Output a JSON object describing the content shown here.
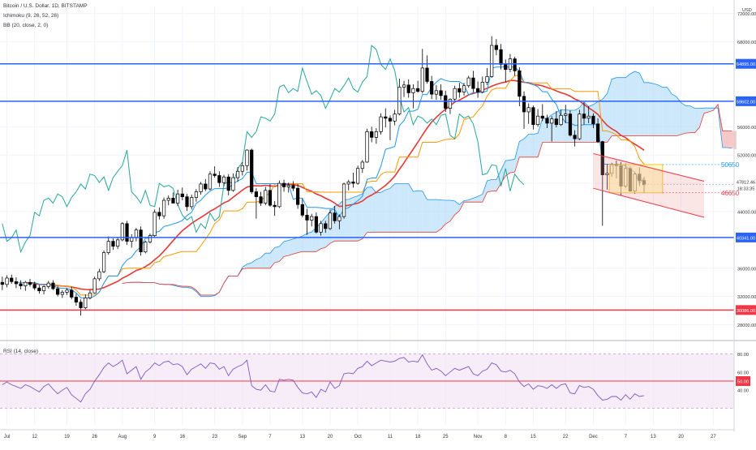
{
  "header": {
    "symbol_line": "Bitcoin / U.S. Dollar, 1D, BITSTAMP",
    "indicator_1": "Ichimoku (9, 26, 52, 26)",
    "indicator_2": "BB (20, close, 2, 0)",
    "currency": "USD"
  },
  "rsi": {
    "title": "RSI (14, close)",
    "levels": [
      80,
      60,
      50,
      40,
      20
    ],
    "level_label": "50.00",
    "ticks": [
      "80.00",
      "60.00",
      "40.00"
    ]
  },
  "chart_data": {
    "type": "candlestick",
    "price_axis_ticks": [
      {
        "value": 72000,
        "label": "72000.00"
      },
      {
        "value": 68000,
        "label": "68000.00"
      },
      {
        "value": 56000,
        "label": "56000.00"
      },
      {
        "value": 52000,
        "label": "52000.00"
      },
      {
        "value": 48000,
        "label": "48000.00"
      },
      {
        "value": 44000,
        "label": "44000.00"
      },
      {
        "value": 40000,
        "label": "40000.00"
      },
      {
        "value": 36000,
        "label": "36000.00"
      },
      {
        "value": 32000,
        "label": "32000.00"
      },
      {
        "value": 28000,
        "label": "28000.00"
      }
    ],
    "price_range": [
      26000,
      73000
    ],
    "x_ticks": [
      "Jul",
      "12",
      "19",
      "26",
      "Aug",
      "9",
      "16",
      "23",
      "Sep",
      "7",
      "13",
      "20",
      "Oct",
      "11",
      "18",
      "25",
      "Nov",
      "8",
      "15",
      "22",
      "Dec",
      "7",
      "13",
      "20",
      "27"
    ],
    "horizontal_levels": [
      {
        "value": 64895,
        "label": "64895.00",
        "color": "#2962ff"
      },
      {
        "value": 59602,
        "label": "59602.00",
        "color": "#2962ff"
      },
      {
        "value": 40341,
        "label": "40341.00",
        "color": "#2962ff"
      },
      {
        "value": 30086,
        "label": "30086.00",
        "color": "#f23645"
      }
    ],
    "current_price": {
      "value": 47812.46,
      "label": "47812.46",
      "countdown": "18:33:35"
    },
    "annotations": [
      {
        "text": "50650",
        "color": "#2196f3"
      },
      {
        "text": "46650",
        "color": "#f23645"
      }
    ],
    "colors": {
      "up": "#ffffff",
      "down": "#000000",
      "tenkan": "#2196f3",
      "kijun": "#ff9800",
      "chikou": "#26a69a",
      "kumo_bull": "#a5d6f7",
      "kumo_bear": "#ef9a9a",
      "bb_basis": "#e53935",
      "rsi_line": "#7e57c2",
      "rsi_band": "#f3e5f5"
    },
    "candles": [
      [
        34000,
        34800,
        32900,
        33700
      ],
      [
        33700,
        35000,
        33300,
        34600
      ],
      [
        34600,
        35100,
        33800,
        34100
      ],
      [
        34100,
        34700,
        33200,
        33800
      ],
      [
        33800,
        34300,
        33000,
        33500
      ],
      [
        33500,
        34200,
        32800,
        34000
      ],
      [
        34000,
        34500,
        33400,
        33700
      ],
      [
        33700,
        34100,
        32900,
        33200
      ],
      [
        33200,
        33600,
        32400,
        32800
      ],
      [
        32800,
        33600,
        32300,
        33400
      ],
      [
        33400,
        34200,
        33100,
        33900
      ],
      [
        33900,
        34300,
        32900,
        33100
      ],
      [
        33100,
        33500,
        32000,
        32300
      ],
      [
        32300,
        32900,
        31800,
        32600
      ],
      [
        32600,
        33200,
        32200,
        32900
      ],
      [
        32900,
        33400,
        31600,
        31900
      ],
      [
        31900,
        32400,
        30700,
        31200
      ],
      [
        31200,
        31600,
        29300,
        30400
      ],
      [
        30400,
        32300,
        30200,
        31800
      ],
      [
        31800,
        32900,
        31600,
        32500
      ],
      [
        32500,
        34800,
        32400,
        34500
      ],
      [
        34500,
        35900,
        34200,
        35500
      ],
      [
        35500,
        38500,
        35300,
        38200
      ],
      [
        38200,
        40500,
        37900,
        39800
      ],
      [
        39800,
        40200,
        38600,
        39100
      ],
      [
        39100,
        40300,
        38700,
        40000
      ],
      [
        40000,
        42500,
        39800,
        42300
      ],
      [
        42300,
        42700,
        39300,
        39800
      ],
      [
        39800,
        40800,
        38900,
        40300
      ],
      [
        40300,
        41700,
        39800,
        41400
      ],
      [
        41400,
        41900,
        37800,
        38300
      ],
      [
        38300,
        39900,
        38100,
        39700
      ],
      [
        39700,
        40900,
        39500,
        40600
      ],
      [
        40600,
        44300,
        40400,
        43900
      ],
      [
        43900,
        44600,
        42900,
        43400
      ],
      [
        43400,
        46000,
        43000,
        45600
      ],
      [
        45600,
        46300,
        44900,
        45900
      ],
      [
        45900,
        46700,
        45300,
        45200
      ],
      [
        45200,
        47100,
        44800,
        46500
      ],
      [
        46500,
        47400,
        45600,
        46100
      ],
      [
        46100,
        46500,
        44100,
        44700
      ],
      [
        44700,
        46400,
        44300,
        46000
      ],
      [
        46000,
        47200,
        45400,
        46800
      ],
      [
        46800,
        48200,
        46400,
        47900
      ],
      [
        47900,
        48600,
        46900,
        47200
      ],
      [
        47200,
        49700,
        47000,
        49300
      ],
      [
        49300,
        50400,
        48800,
        49100
      ],
      [
        49100,
        49700,
        47500,
        48100
      ],
      [
        48100,
        49200,
        47600,
        48900
      ],
      [
        48900,
        49300,
        46300,
        47000
      ],
      [
        47000,
        49400,
        46800,
        48800
      ],
      [
        48800,
        50300,
        48200,
        49700
      ],
      [
        49700,
        51000,
        49100,
        50500
      ],
      [
        50500,
        52800,
        49800,
        52700
      ],
      [
        52700,
        52900,
        46500,
        46800
      ],
      [
        46800,
        47300,
        43000,
        46100
      ],
      [
        46100,
        46800,
        44800,
        45200
      ],
      [
        45200,
        47500,
        44900,
        47000
      ],
      [
        47000,
        47900,
        44700,
        44900
      ],
      [
        44900,
        45500,
        43400,
        44700
      ],
      [
        44700,
        48400,
        44500,
        48000
      ],
      [
        48000,
        48500,
        46800,
        47500
      ],
      [
        47500,
        48100,
        46700,
        47700
      ],
      [
        47700,
        48300,
        46900,
        47300
      ],
      [
        47300,
        47900,
        44400,
        45000
      ],
      [
        45000,
        45900,
        43200,
        43500
      ],
      [
        43500,
        44400,
        40700,
        42800
      ],
      [
        42800,
        43700,
        41900,
        43300
      ],
      [
        43300,
        43900,
        40900,
        41100
      ],
      [
        41100,
        42700,
        40600,
        42300
      ],
      [
        42300,
        42700,
        41000,
        41600
      ],
      [
        41600,
        44300,
        41400,
        43800
      ],
      [
        43800,
        44800,
        42300,
        42700
      ],
      [
        42700,
        43600,
        41500,
        43300
      ],
      [
        43300,
        48100,
        43000,
        47900
      ],
      [
        47900,
        48500,
        47000,
        48200
      ],
      [
        48200,
        49500,
        47400,
        48000
      ],
      [
        48000,
        50500,
        47800,
        50100
      ],
      [
        50100,
        51300,
        49500,
        51000
      ],
      [
        51000,
        55700,
        50900,
        55300
      ],
      [
        55300,
        56000,
        53800,
        54500
      ],
      [
        54500,
        55800,
        53600,
        55300
      ],
      [
        55300,
        57900,
        54900,
        57400
      ],
      [
        57400,
        58600,
        55900,
        57200
      ],
      [
        57200,
        57600,
        54100,
        56800
      ],
      [
        56800,
        58400,
        56200,
        57800
      ],
      [
        57800,
        62800,
        57600,
        61600
      ],
      [
        61600,
        62500,
        60200,
        61900
      ],
      [
        61900,
        62700,
        60100,
        60800
      ],
      [
        60800,
        62000,
        58600,
        61400
      ],
      [
        61400,
        62500,
        60800,
        61000
      ],
      [
        61000,
        67000,
        60700,
        64300
      ],
      [
        64300,
        66100,
        62100,
        62400
      ],
      [
        62400,
        63200,
        59900,
        60600
      ],
      [
        60600,
        61900,
        59800,
        61100
      ],
      [
        61100,
        62000,
        59800,
        60400
      ],
      [
        60400,
        61100,
        58100,
        58600
      ],
      [
        58600,
        60000,
        57800,
        59900
      ],
      [
        59900,
        61800,
        59700,
        61400
      ],
      [
        61400,
        62200,
        60100,
        60900
      ],
      [
        60900,
        62200,
        60400,
        61800
      ],
      [
        61800,
        63200,
        61500,
        62900
      ],
      [
        62900,
        63900,
        60900,
        61400
      ],
      [
        61400,
        62400,
        60100,
        60900
      ],
      [
        60900,
        63100,
        60700,
        62300
      ],
      [
        62300,
        64300,
        61900,
        63100
      ],
      [
        63100,
        68800,
        62900,
        67500
      ],
      [
        67500,
        68400,
        66100,
        66900
      ],
      [
        66900,
        67700,
        64100,
        64800
      ],
      [
        64800,
        65500,
        62300,
        64100
      ],
      [
        64100,
        66300,
        63700,
        65600
      ],
      [
        65600,
        65900,
        63200,
        63900
      ],
      [
        63900,
        64400,
        58900,
        60300
      ],
      [
        60300,
        61000,
        55700,
        58100
      ],
      [
        58100,
        59300,
        56400,
        58700
      ],
      [
        58700,
        59000,
        55600,
        56300
      ],
      [
        56300,
        58500,
        56000,
        57500
      ],
      [
        57500,
        59200,
        56800,
        57200
      ],
      [
        57200,
        57700,
        55800,
        56500
      ],
      [
        56500,
        57500,
        53900,
        57100
      ],
      [
        57100,
        58200,
        55900,
        56300
      ],
      [
        56300,
        58400,
        56100,
        57600
      ],
      [
        57600,
        59100,
        56500,
        57800
      ],
      [
        57800,
        58300,
        54600,
        54800
      ],
      [
        54800,
        55500,
        53200,
        54300
      ],
      [
        54300,
        58400,
        54100,
        57800
      ],
      [
        57800,
        59400,
        56300,
        57200
      ],
      [
        57200,
        58900,
        56500,
        57500
      ],
      [
        57500,
        57900,
        55800,
        56400
      ],
      [
        56400,
        57200,
        53700,
        53900
      ],
      [
        53900,
        54000,
        42000,
        49200
      ],
      [
        49200,
        50700,
        47100,
        49400
      ],
      [
        49400,
        50900,
        48900,
        50600
      ],
      [
        50600,
        51200,
        48700,
        50500
      ],
      [
        50500,
        51000,
        46300,
        47600
      ],
      [
        47600,
        50800,
        47300,
        50100
      ],
      [
        50100,
        50400,
        46800,
        46900
      ],
      [
        46900,
        49500,
        46500,
        49300
      ],
      [
        49300,
        50200,
        47600,
        48400
      ],
      [
        48400,
        48900,
        46600,
        47800
      ]
    ],
    "rsi_values": [
      46,
      49,
      46,
      44,
      42,
      46,
      44,
      41,
      38,
      44,
      47,
      41,
      36,
      40,
      43,
      35,
      31,
      27,
      36,
      41,
      50,
      57,
      65,
      70,
      66,
      69,
      73,
      58,
      62,
      66,
      52,
      60,
      64,
      70,
      67,
      71,
      72,
      68,
      69,
      66,
      57,
      63,
      66,
      69,
      64,
      70,
      69,
      63,
      66,
      56,
      63,
      66,
      68,
      73,
      45,
      41,
      40,
      46,
      39,
      38,
      52,
      51,
      52,
      51,
      43,
      37,
      36,
      38,
      32,
      41,
      38,
      49,
      42,
      45,
      58,
      59,
      58,
      64,
      66,
      72,
      67,
      70,
      73,
      72,
      71,
      72,
      75,
      76,
      71,
      72,
      71,
      79,
      69,
      62,
      64,
      61,
      56,
      60,
      64,
      62,
      64,
      66,
      58,
      56,
      61,
      63,
      70,
      68,
      61,
      60,
      62,
      58,
      49,
      44,
      47,
      41,
      45,
      44,
      42,
      46,
      42,
      46,
      47,
      37,
      36,
      45,
      43,
      44,
      41,
      34,
      29,
      30,
      33,
      33,
      29,
      35,
      30,
      36,
      33,
      34
    ]
  }
}
